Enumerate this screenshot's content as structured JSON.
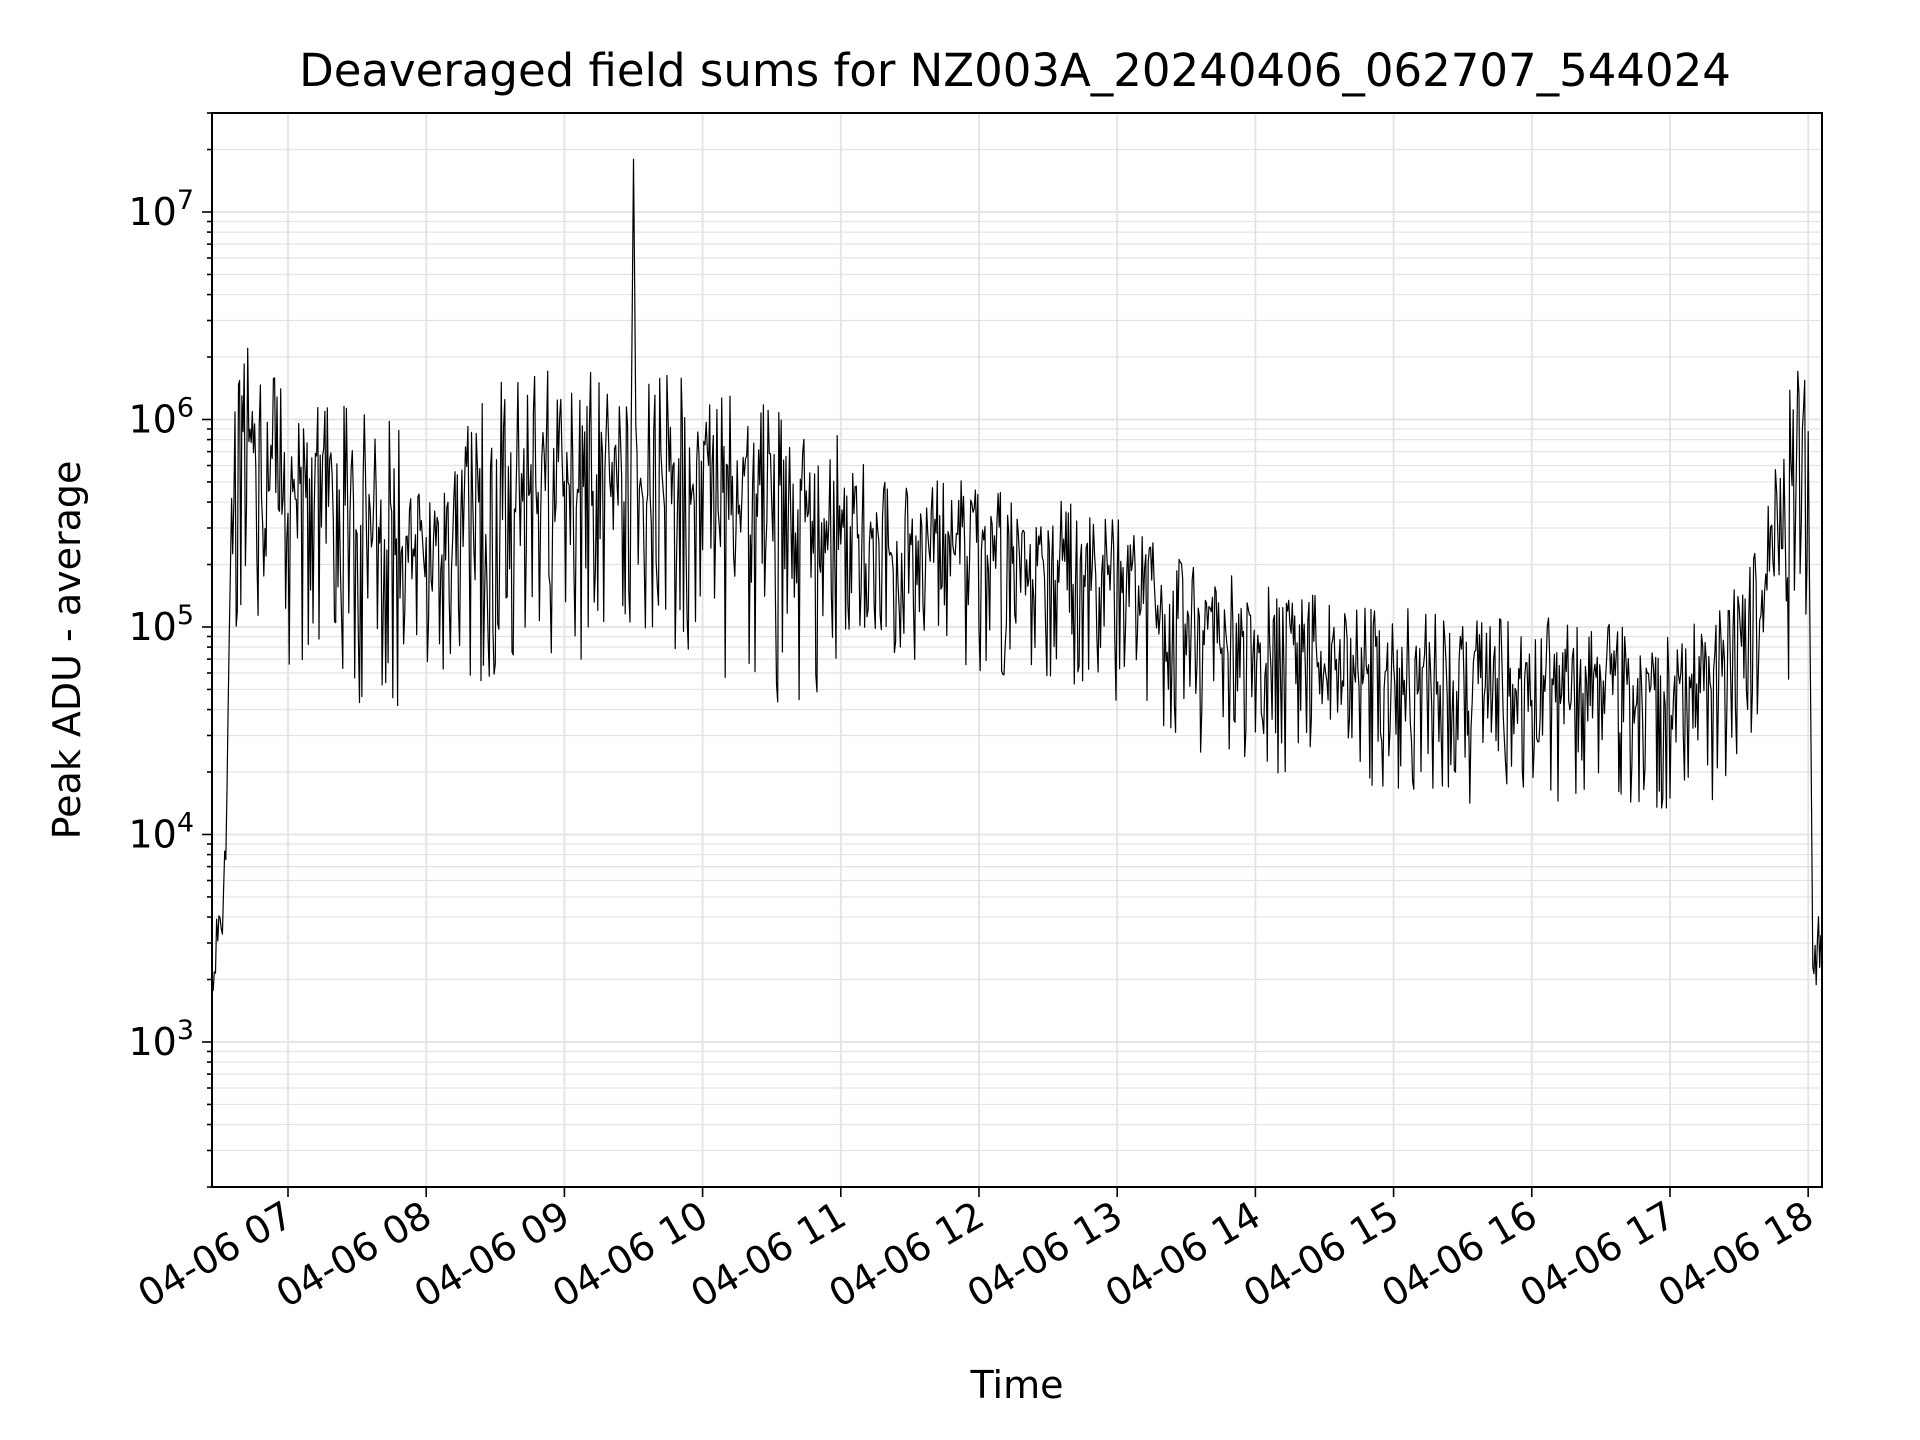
{
  "chart_data": {
    "type": "line",
    "title": "Deaveraged field sums for NZ003A_20240406_062707_544024",
    "xlabel": "Time",
    "ylabel": "Peak ADU - average",
    "yscale": "log",
    "xlim": [
      "04-06 06:27",
      "04-06 18:06"
    ],
    "ylim": [
      200,
      30000000
    ],
    "grid": true,
    "line_color": "#000000",
    "x_ticks": [
      "04-06 07",
      "04-06 08",
      "04-06 09",
      "04-06 10",
      "04-06 11",
      "04-06 12",
      "04-06 13",
      "04-06 14",
      "04-06 15",
      "04-06 16",
      "04-06 17",
      "04-06 18"
    ],
    "y_ticks": [
      {
        "base": "10",
        "exp": "3"
      },
      {
        "base": "10",
        "exp": "4"
      },
      {
        "base": "10",
        "exp": "5"
      },
      {
        "base": "10",
        "exp": "6"
      },
      {
        "base": "10",
        "exp": "7"
      }
    ],
    "series": [
      {
        "x": [
          "04-06 06:27",
          "04-06 06:29",
          "04-06 06:31",
          "04-06 06:33",
          "04-06 06:36",
          "04-06 06:40",
          "04-06 06:45",
          "04-06 06:51",
          "04-06 07:00",
          "04-06 07:15",
          "04-06 07:30",
          "04-06 07:45",
          "04-06 08:00",
          "04-06 08:10",
          "04-06 08:15",
          "04-06 08:30",
          "04-06 08:45",
          "04-06 09:00",
          "04-06 09:15",
          "04-06 09:29",
          "04-06 09:30",
          "04-06 09:31",
          "04-06 09:45",
          "04-06 10:00",
          "04-06 10:30",
          "04-06 11:00",
          "04-06 11:30",
          "04-06 12:00",
          "04-06 12:30",
          "04-06 13:00",
          "04-06 13:30",
          "04-06 14:00",
          "04-06 14:30",
          "04-06 15:00",
          "04-06 15:30",
          "04-06 16:00",
          "04-06 16:30",
          "04-06 17:00",
          "04-06 17:20",
          "04-06 17:40",
          "04-06 17:50",
          "04-06 17:55",
          "04-06 18:00",
          "04-06 18:02",
          "04-06 18:06"
        ],
        "y": [
          1500,
          4000,
          3000,
          8000,
          900000,
          1500000,
          1200000,
          1000000,
          900000,
          800000,
          700000,
          600000,
          400000,
          300000,
          600000,
          900000,
          1000000,
          1100000,
          1000000,
          1000000,
          19000000,
          1000000,
          1000000,
          1000000,
          700000,
          500000,
          400000,
          350000,
          300000,
          250000,
          150000,
          120000,
          100000,
          90000,
          80000,
          80000,
          80000,
          70000,
          80000,
          200000,
          700000,
          1600000,
          800000,
          3000,
          2500
        ]
      }
    ]
  }
}
